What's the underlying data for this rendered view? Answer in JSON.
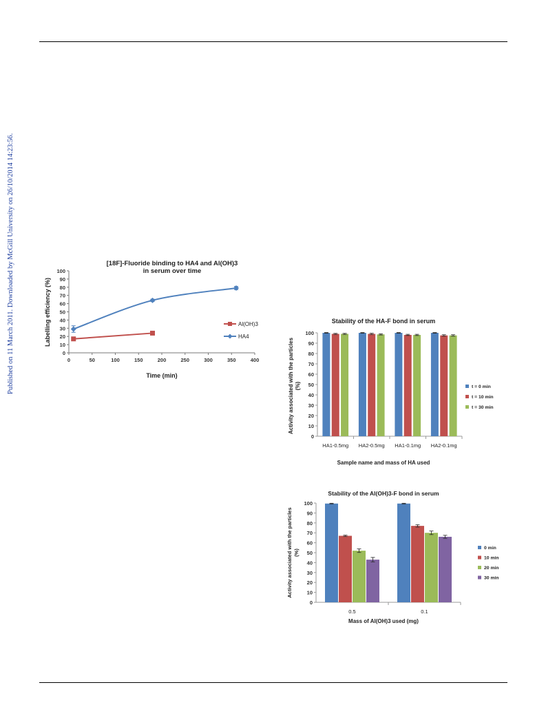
{
  "side_note": "Published on 11 March 2011. Downloaded by McGill University on 26/10/2014 14:23:56.",
  "chart_data": [
    {
      "type": "line",
      "title_line1": "[18F]-Fluoride binding to HA4 and Al(OH)3",
      "title_line2": "in serum over time",
      "xlabel": "Time (min)",
      "ylabel": "Labelling efficiency (%)",
      "xlim": [
        0,
        400
      ],
      "ylim": [
        0,
        100
      ],
      "x_ticks": [
        "0",
        "50",
        "100",
        "150",
        "200",
        "250",
        "300",
        "350",
        "400"
      ],
      "y_ticks": [
        "0",
        "10",
        "20",
        "30",
        "40",
        "50",
        "60",
        "70",
        "80",
        "90",
        "100"
      ],
      "legend_position": "right",
      "series": [
        {
          "name": "Al(OH)3",
          "color": "#c0504d",
          "marker": "square",
          "x": [
            10,
            180
          ],
          "y": [
            17,
            24
          ],
          "err": [
            1,
            1
          ]
        },
        {
          "name": "HA4",
          "color": "#4f81bd",
          "marker": "diamond",
          "x": [
            10,
            180,
            360
          ],
          "y": [
            29,
            64,
            79
          ],
          "err": [
            4,
            1.5,
            2
          ]
        }
      ]
    },
    {
      "type": "bar",
      "title": "Stability of the HA-F bond in serum",
      "xlabel": "Sample name and mass of HA used",
      "ylabel_line1": "Activity associated  with the particles",
      "ylabel_line2": "(%)",
      "ylim": [
        0,
        100
      ],
      "y_ticks": [
        "0",
        "10",
        "20",
        "30",
        "40",
        "50",
        "60",
        "70",
        "80",
        "90",
        "100"
      ],
      "categories": [
        "HA1-0.5mg",
        "HA2-0.5mg",
        "HA1-0.1mg",
        "HA2-0.1mg"
      ],
      "legend_position": "right",
      "series": [
        {
          "name": "t = 0 min",
          "color": "#4f81bd",
          "values": [
            100,
            100,
            100,
            100
          ],
          "err": [
            0.3,
            0.3,
            0.3,
            0.3
          ]
        },
        {
          "name": "t = 10 min",
          "color": "#c0504d",
          "values": [
            99,
            99,
            98,
            97.5
          ],
          "err": [
            0.5,
            0.6,
            0.6,
            0.7
          ]
        },
        {
          "name": "t = 30 min",
          "color": "#9bbb59",
          "values": [
            99,
            98.5,
            98,
            97.5
          ],
          "err": [
            0.5,
            0.6,
            0.6,
            0.7
          ]
        }
      ]
    },
    {
      "type": "bar",
      "title": "Stability of the Al(OH)3-F bond in serum",
      "xlabel": "Mass of Al(OH)3 used (mg)",
      "ylabel_line1": "Activity associated  with the particles",
      "ylabel_line2": "(%)",
      "ylim": [
        0,
        100
      ],
      "y_ticks": [
        "0",
        "10",
        "20",
        "30",
        "40",
        "50",
        "60",
        "70",
        "80",
        "90",
        "100"
      ],
      "categories": [
        "0.5",
        "0.1"
      ],
      "legend_position": "right",
      "series": [
        {
          "name": "0 min",
          "color": "#4f81bd",
          "values": [
            99.5,
            99.5
          ],
          "err": [
            0.3,
            0.3
          ]
        },
        {
          "name": "10 min",
          "color": "#c0504d",
          "values": [
            67,
            77
          ],
          "err": [
            0.6,
            1.2
          ]
        },
        {
          "name": "20 min",
          "color": "#9bbb59",
          "values": [
            52,
            70
          ],
          "err": [
            1.8,
            1.8
          ]
        },
        {
          "name": "30 min",
          "color": "#8064a2",
          "values": [
            43,
            66
          ],
          "err": [
            2.2,
            1.5
          ]
        }
      ]
    }
  ]
}
